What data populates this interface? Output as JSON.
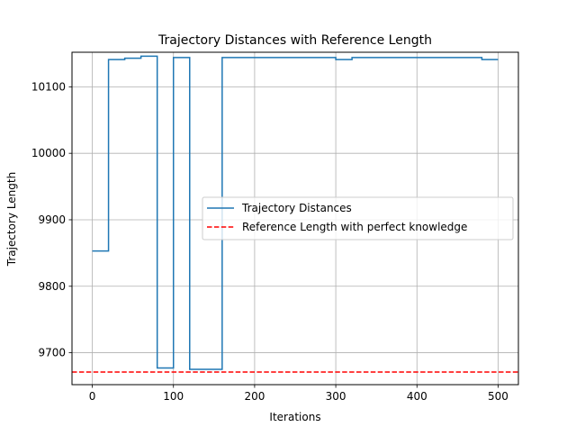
{
  "chart_data": {
    "type": "line",
    "title": "Trajectory Distances with Reference Length",
    "xlabel": "Iterations",
    "ylabel": "Trajectory Length",
    "xlim": [
      -25,
      525
    ],
    "ylim": [
      9652,
      10152
    ],
    "xticks": [
      0,
      100,
      200,
      300,
      400,
      500
    ],
    "yticks": [
      9700,
      9800,
      9900,
      10000,
      10100
    ],
    "grid": true,
    "legend_position": "center-right",
    "series": [
      {
        "name": "Trajectory Distances",
        "color": "#1f77b4",
        "style": "solid",
        "step": true,
        "x": [
          0,
          20,
          20,
          40,
          40,
          60,
          60,
          80,
          80,
          100,
          100,
          120,
          120,
          160,
          160,
          300,
          300,
          320,
          320,
          480,
          480,
          500
        ],
        "y": [
          9853,
          9853,
          10141,
          10141,
          10143,
          10143,
          10146,
          10146,
          9677,
          9677,
          10144,
          10144,
          9675,
          9675,
          10144,
          10144,
          10141,
          10141,
          10144,
          10144,
          10141,
          10141
        ]
      },
      {
        "name": "Reference Length with perfect knowledge",
        "color": "#ff0000",
        "style": "dashed",
        "y_const": 9671
      }
    ]
  }
}
